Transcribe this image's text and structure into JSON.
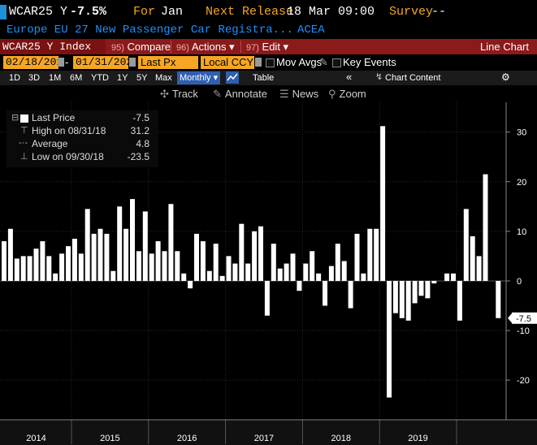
{
  "header": {
    "ticker": "WCAR25 Y",
    "last_change": "-7.5%",
    "for_label": "For",
    "for_value": "Jan",
    "next_release_label": "Next Release",
    "next_release_value": "18 Mar 09:00",
    "survey_label": "Survey",
    "survey_value": "--"
  },
  "description": {
    "name": "Europe EU 27 New Passenger Car Registra...",
    "source": "ACEA"
  },
  "toolbar": {
    "index_label": "WCAR25 Y Index",
    "compare_num": "95)",
    "compare_label": "Compare",
    "actions_num": "96)",
    "actions_label": "Actions ▾",
    "edit_num": "97)",
    "edit_label": "Edit ▾",
    "chart_type": "Line Chart"
  },
  "options": {
    "start_date": "02/18/2014",
    "end_date": "01/31/2020",
    "field": "Last Px",
    "currency": "Local CCY",
    "mov_avgs": "Mov Avgs",
    "key_events": "Key Events"
  },
  "periods": {
    "tabs": [
      "1D",
      "3D",
      "1M",
      "6M",
      "YTD",
      "1Y",
      "5Y",
      "Max"
    ],
    "frequency": "Monthly ▾",
    "table": "Table",
    "chart_content": "Chart Content"
  },
  "tools": {
    "track": "Track",
    "annotate": "Annotate",
    "news": "News",
    "zoom": "Zoom"
  },
  "legend": {
    "last_price_label": "Last Price",
    "last_price_value": "-7.5",
    "high_label": "High on 08/31/18",
    "high_value": "31.2",
    "average_label": "Average",
    "average_value": "4.8",
    "low_label": "Low on 09/30/18",
    "low_value": "-23.5"
  },
  "colors": {
    "bar": "#ffffff",
    "background": "#000000",
    "accent_orange": "#f5a623",
    "toolbar_red": "#8b1a1a",
    "desc_blue": "#1e90ff"
  },
  "chart_data": {
    "type": "bar",
    "y_ticks": [
      30,
      20,
      10,
      0,
      -10,
      -20
    ],
    "ylim": [
      -28,
      36
    ],
    "last_value_label": "-7.5",
    "x_year_labels": [
      "2014",
      "2015",
      "2016",
      "2017",
      "2018",
      "2019"
    ],
    "x_start": "2014-02",
    "values": [
      8.0,
      10.5,
      4.5,
      5.0,
      5.0,
      6.5,
      8.0,
      5.0,
      1.5,
      5.5,
      7.0,
      8.5,
      5.5,
      14.5,
      9.5,
      10.5,
      9.5,
      2.0,
      15.0,
      10.5,
      16.5,
      6.0,
      14.0,
      5.5,
      8.0,
      6.0,
      15.5,
      6.0,
      1.5,
      -1.5,
      9.5,
      8.0,
      2.0,
      7.5,
      1.0,
      5.0,
      3.5,
      11.5,
      3.5,
      10.0,
      11.0,
      -7.0,
      7.5,
      2.5,
      3.5,
      5.5,
      -2.0,
      3.5,
      6.0,
      1.5,
      -5.0,
      3.0,
      7.5,
      4.0,
      -5.5,
      9.5,
      1.5,
      10.5,
      10.5,
      31.2,
      -23.5,
      -6.5,
      -7.5,
      -8.0,
      -4.5,
      -3.0,
      -3.5,
      -0.5,
      0.0,
      1.5,
      1.5,
      -8.0,
      14.5,
      9.0,
      5.0,
      21.5,
      0.0,
      -7.5
    ]
  }
}
